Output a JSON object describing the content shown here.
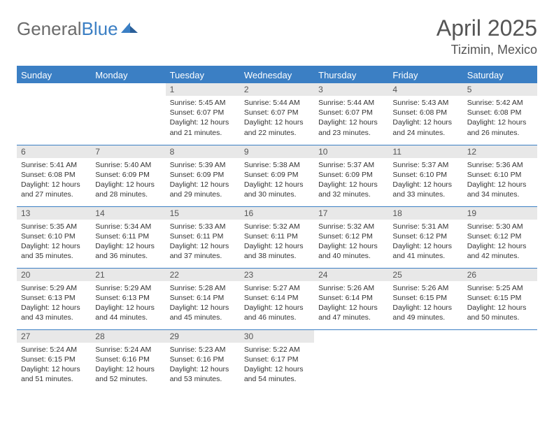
{
  "logo": {
    "text_gray": "General",
    "text_blue": "Blue"
  },
  "header": {
    "title": "April 2025",
    "location": "Tizimin, Mexico"
  },
  "colors": {
    "brand": "#3b7fc4",
    "header_bg": "#3b7fc4",
    "header_fg": "#ffffff",
    "daynum_bg": "#e8e8e8",
    "text": "#333333",
    "muted": "#555555"
  },
  "weekdays": [
    "Sunday",
    "Monday",
    "Tuesday",
    "Wednesday",
    "Thursday",
    "Friday",
    "Saturday"
  ],
  "weeks": [
    [
      null,
      null,
      {
        "n": "1",
        "sr": "5:45 AM",
        "ss": "6:07 PM",
        "dl": "12 hours and 21 minutes."
      },
      {
        "n": "2",
        "sr": "5:44 AM",
        "ss": "6:07 PM",
        "dl": "12 hours and 22 minutes."
      },
      {
        "n": "3",
        "sr": "5:44 AM",
        "ss": "6:07 PM",
        "dl": "12 hours and 23 minutes."
      },
      {
        "n": "4",
        "sr": "5:43 AM",
        "ss": "6:08 PM",
        "dl": "12 hours and 24 minutes."
      },
      {
        "n": "5",
        "sr": "5:42 AM",
        "ss": "6:08 PM",
        "dl": "12 hours and 26 minutes."
      }
    ],
    [
      {
        "n": "6",
        "sr": "5:41 AM",
        "ss": "6:08 PM",
        "dl": "12 hours and 27 minutes."
      },
      {
        "n": "7",
        "sr": "5:40 AM",
        "ss": "6:09 PM",
        "dl": "12 hours and 28 minutes."
      },
      {
        "n": "8",
        "sr": "5:39 AM",
        "ss": "6:09 PM",
        "dl": "12 hours and 29 minutes."
      },
      {
        "n": "9",
        "sr": "5:38 AM",
        "ss": "6:09 PM",
        "dl": "12 hours and 30 minutes."
      },
      {
        "n": "10",
        "sr": "5:37 AM",
        "ss": "6:09 PM",
        "dl": "12 hours and 32 minutes."
      },
      {
        "n": "11",
        "sr": "5:37 AM",
        "ss": "6:10 PM",
        "dl": "12 hours and 33 minutes."
      },
      {
        "n": "12",
        "sr": "5:36 AM",
        "ss": "6:10 PM",
        "dl": "12 hours and 34 minutes."
      }
    ],
    [
      {
        "n": "13",
        "sr": "5:35 AM",
        "ss": "6:10 PM",
        "dl": "12 hours and 35 minutes."
      },
      {
        "n": "14",
        "sr": "5:34 AM",
        "ss": "6:11 PM",
        "dl": "12 hours and 36 minutes."
      },
      {
        "n": "15",
        "sr": "5:33 AM",
        "ss": "6:11 PM",
        "dl": "12 hours and 37 minutes."
      },
      {
        "n": "16",
        "sr": "5:32 AM",
        "ss": "6:11 PM",
        "dl": "12 hours and 38 minutes."
      },
      {
        "n": "17",
        "sr": "5:32 AM",
        "ss": "6:12 PM",
        "dl": "12 hours and 40 minutes."
      },
      {
        "n": "18",
        "sr": "5:31 AM",
        "ss": "6:12 PM",
        "dl": "12 hours and 41 minutes."
      },
      {
        "n": "19",
        "sr": "5:30 AM",
        "ss": "6:12 PM",
        "dl": "12 hours and 42 minutes."
      }
    ],
    [
      {
        "n": "20",
        "sr": "5:29 AM",
        "ss": "6:13 PM",
        "dl": "12 hours and 43 minutes."
      },
      {
        "n": "21",
        "sr": "5:29 AM",
        "ss": "6:13 PM",
        "dl": "12 hours and 44 minutes."
      },
      {
        "n": "22",
        "sr": "5:28 AM",
        "ss": "6:14 PM",
        "dl": "12 hours and 45 minutes."
      },
      {
        "n": "23",
        "sr": "5:27 AM",
        "ss": "6:14 PM",
        "dl": "12 hours and 46 minutes."
      },
      {
        "n": "24",
        "sr": "5:26 AM",
        "ss": "6:14 PM",
        "dl": "12 hours and 47 minutes."
      },
      {
        "n": "25",
        "sr": "5:26 AM",
        "ss": "6:15 PM",
        "dl": "12 hours and 49 minutes."
      },
      {
        "n": "26",
        "sr": "5:25 AM",
        "ss": "6:15 PM",
        "dl": "12 hours and 50 minutes."
      }
    ],
    [
      {
        "n": "27",
        "sr": "5:24 AM",
        "ss": "6:15 PM",
        "dl": "12 hours and 51 minutes."
      },
      {
        "n": "28",
        "sr": "5:24 AM",
        "ss": "6:16 PM",
        "dl": "12 hours and 52 minutes."
      },
      {
        "n": "29",
        "sr": "5:23 AM",
        "ss": "6:16 PM",
        "dl": "12 hours and 53 minutes."
      },
      {
        "n": "30",
        "sr": "5:22 AM",
        "ss": "6:17 PM",
        "dl": "12 hours and 54 minutes."
      },
      null,
      null,
      null
    ]
  ],
  "labels": {
    "sunrise": "Sunrise:",
    "sunset": "Sunset:",
    "daylight": "Daylight:"
  }
}
